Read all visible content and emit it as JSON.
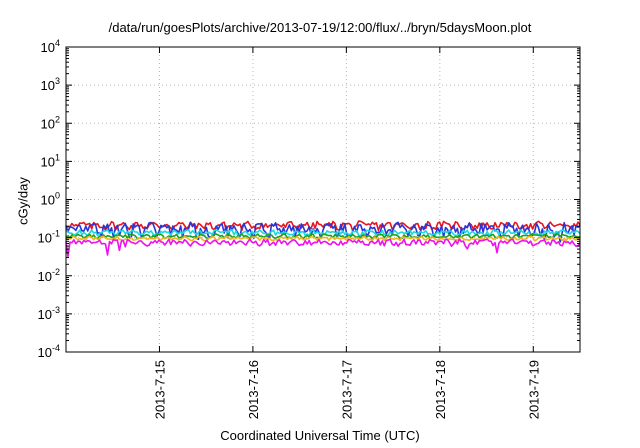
{
  "chart_data": {
    "type": "line",
    "title": "/data/run/goesPlots/archive/2013-07-19/12:00/flux/../bryn/5daysMoon.plot",
    "xlabel": "Coordinated Universal Time (UTC)",
    "ylabel": "cGy/day",
    "yscale": "log",
    "ylim": [
      0.0001,
      10000
    ],
    "yticks": [
      {
        "value": 0.0001,
        "base": "10",
        "exp": "-4"
      },
      {
        "value": 0.001,
        "base": "10",
        "exp": "-3"
      },
      {
        "value": 0.01,
        "base": "10",
        "exp": "-2"
      },
      {
        "value": 0.1,
        "base": "10",
        "exp": "-1"
      },
      {
        "value": 1,
        "base": "10",
        "exp": "0"
      },
      {
        "value": 10,
        "base": "10",
        "exp": "1"
      },
      {
        "value": 100,
        "base": "10",
        "exp": "2"
      },
      {
        "value": 1000,
        "base": "10",
        "exp": "3"
      },
      {
        "value": 10000,
        "base": "10",
        "exp": "4"
      }
    ],
    "xlim": [
      "2013-07-14 00:00",
      "2013-07-19 12:00"
    ],
    "xticks": [
      "2013-7-15",
      "2013-7-16",
      "2013-7-17",
      "2013-7-18",
      "2013-7-19"
    ],
    "grid": true,
    "legend": "none",
    "series": [
      {
        "color": "#e8141e",
        "base": 0.21,
        "amp": 0.045,
        "dips": 0.0
      },
      {
        "color": "#2a35d8",
        "base": 0.17,
        "amp": 0.06,
        "dips": 0.35
      },
      {
        "color": "#18d8e0",
        "base": 0.135,
        "amp": 0.02,
        "dips": 0.0
      },
      {
        "color": "#1ea01e",
        "base": 0.11,
        "amp": 0.012,
        "dips": 0.0
      },
      {
        "color": "#f0b41e",
        "base": 0.095,
        "amp": 0.01,
        "dips": 0.0
      },
      {
        "color": "#ee10ee",
        "base": 0.075,
        "amp": 0.012,
        "dips": 0.6
      }
    ]
  }
}
